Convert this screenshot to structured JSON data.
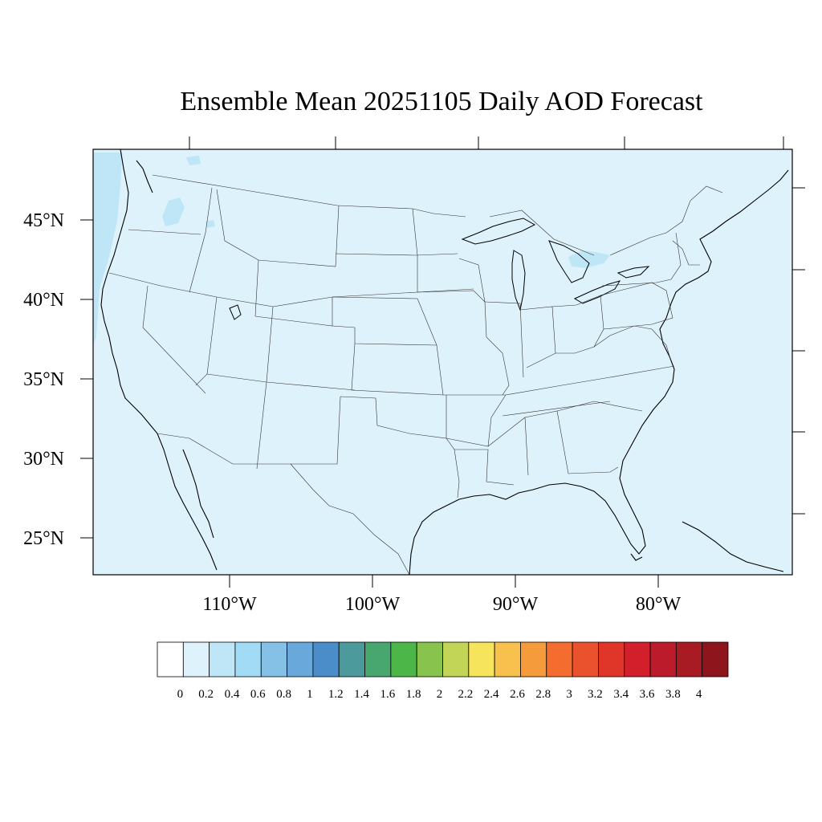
{
  "map": {
    "title": "Ensemble Mean 20251105 Daily AOD Forecast",
    "lat_labels": [
      "45°N",
      "40°N",
      "35°N",
      "30°N",
      "25°N"
    ],
    "lon_labels": [
      "110°W",
      "100°W",
      "90°W",
      "80°W"
    ],
    "background_fill": "#def2fb",
    "higher_fill": "#bfe6f7",
    "colorbar": {
      "labels": [
        "0",
        "0.2",
        "0.4",
        "0.6",
        "0.8",
        "1",
        "1.2",
        "1.4",
        "1.6",
        "1.8",
        "2",
        "2.2",
        "2.4",
        "2.6",
        "2.8",
        "3",
        "3.2",
        "3.4",
        "3.6",
        "3.8",
        "4"
      ],
      "colors": [
        "#ffffff",
        "#def2fb",
        "#bfe6f7",
        "#a2dbf5",
        "#85c1e6",
        "#69a8da",
        "#4a8dc8",
        "#4c9a9c",
        "#48a76e",
        "#4cb748",
        "#87c34d",
        "#c3d557",
        "#f6e55c",
        "#f8c04c",
        "#f69b3c",
        "#f46d2f",
        "#e9522d",
        "#e0362a",
        "#d11f2b",
        "#bb1b2a",
        "#a81b23",
        "#8e151c"
      ]
    }
  }
}
